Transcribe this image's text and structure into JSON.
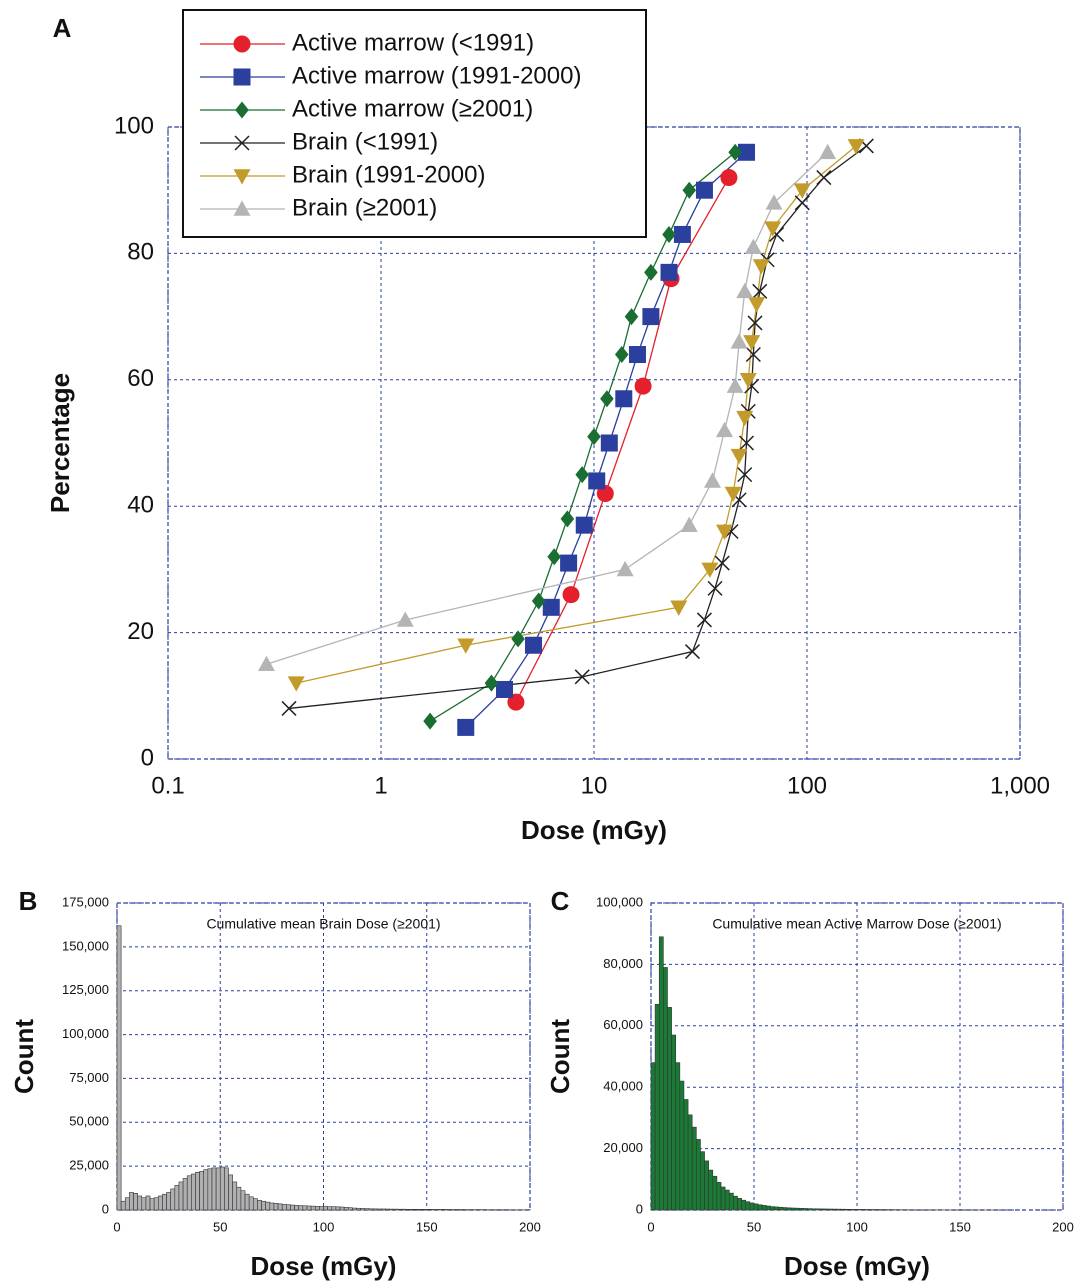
{
  "chart_data": [
    {
      "type": "line",
      "panel_label": "A",
      "xlabel": "Dose (mGy)",
      "ylabel": "Percentage",
      "xscale": "log",
      "xlim": [
        0.1,
        1000
      ],
      "xticks": [
        0.1,
        1,
        10,
        100,
        {
          "value": 1000,
          "label": "1,000"
        }
      ],
      "ylim": [
        0,
        100
      ],
      "yticks": [
        0,
        20,
        40,
        60,
        80,
        100
      ],
      "grid": true,
      "legend": "upper left",
      "series": [
        {
          "name": "Active marrow (<1991)",
          "color": "#e3202b",
          "marker": "circle",
          "x": [
            4.3,
            7.8,
            11.3,
            17,
            23,
            43
          ],
          "values": [
            9,
            26,
            42,
            59,
            76,
            92
          ]
        },
        {
          "name": "Active marrow (1991-2000)",
          "color": "#2b3f9e",
          "marker": "square",
          "x": [
            2.5,
            3.8,
            5.2,
            6.3,
            7.6,
            9,
            10.3,
            11.8,
            13.8,
            16,
            18.5,
            22.5,
            26,
            33,
            52
          ],
          "values": [
            5,
            11,
            18,
            24,
            31,
            37,
            44,
            50,
            57,
            64,
            70,
            77,
            83,
            90,
            96
          ]
        },
        {
          "name": "Active marrow (≥2001)",
          "color": "#1b6e31",
          "marker": "diamond",
          "x": [
            1.7,
            3.3,
            4.4,
            5.5,
            6.5,
            7.5,
            8.8,
            10,
            11.5,
            13.5,
            15,
            18.5,
            22.5,
            28,
            46
          ],
          "values": [
            6,
            12,
            19,
            25,
            32,
            38,
            45,
            51,
            57,
            64,
            70,
            77,
            83,
            90,
            96
          ]
        },
        {
          "name": "Brain (<1991)",
          "color": "#222222",
          "marker": "x",
          "x": [
            0.37,
            8.8,
            29,
            33,
            37,
            40,
            44,
            48,
            51,
            52,
            53,
            55,
            56,
            57,
            60,
            65,
            72,
            95,
            120,
            190
          ],
          "values": [
            8,
            13,
            17,
            22,
            27,
            31,
            36,
            41,
            45,
            50,
            55,
            59,
            64,
            69,
            74,
            79,
            83,
            88,
            92,
            97
          ]
        },
        {
          "name": "Brain (1991-2000)",
          "color": "#c29b2b",
          "marker": "triangle-down",
          "x": [
            0.4,
            2.5,
            25,
            35,
            41,
            45,
            48,
            51,
            53,
            55,
            58,
            61,
            69,
            95,
            170
          ],
          "values": [
            12,
            18,
            24,
            30,
            36,
            42,
            48,
            54,
            60,
            66,
            72,
            78,
            84,
            90,
            97
          ]
        },
        {
          "name": "Brain (≥2001)",
          "color": "#b4b4b4",
          "marker": "triangle-up",
          "x": [
            0.29,
            1.3,
            14,
            28,
            36,
            41,
            46,
            48,
            51,
            56,
            70,
            125
          ],
          "values": [
            15,
            22,
            30,
            37,
            44,
            52,
            59,
            66,
            74,
            81,
            88,
            96
          ]
        }
      ]
    },
    {
      "type": "histogram",
      "panel_label": "B",
      "annotation": "Cumulative mean Brain Dose (≥2001)",
      "xlabel": "Dose (mGy)",
      "ylabel": "Count",
      "color": "#b0b0b0",
      "grid": true,
      "xlim": [
        0,
        200
      ],
      "xticks": [
        0,
        50,
        100,
        150,
        200
      ],
      "ylim": [
        0,
        175000
      ],
      "yticks": [
        0,
        {
          "value": 25000,
          "label": "25,000"
        },
        {
          "value": 50000,
          "label": "50,000"
        },
        {
          "value": 75000,
          "label": "75,000"
        },
        {
          "value": 100000,
          "label": "100,000"
        },
        {
          "value": 125000,
          "label": "125,000"
        },
        {
          "value": 150000,
          "label": "150,000"
        },
        {
          "value": 175000,
          "label": "175,000"
        }
      ],
      "bins": [
        0,
        2,
        4,
        6,
        8,
        10,
        12,
        14,
        16,
        18,
        20,
        22,
        24,
        26,
        28,
        30,
        32,
        34,
        36,
        38,
        40,
        42,
        44,
        46,
        48,
        50,
        52,
        54,
        56,
        58,
        60,
        62,
        64,
        66,
        68,
        70,
        72,
        74,
        76,
        78,
        80,
        82,
        84,
        86,
        88,
        90,
        92,
        94,
        96,
        98,
        100,
        102,
        104,
        106,
        108,
        110,
        112,
        114,
        116,
        118,
        120,
        122,
        124,
        126,
        128,
        130,
        132,
        134,
        136,
        138,
        140,
        142,
        144,
        146,
        148,
        150,
        152,
        154,
        156,
        158,
        160,
        162,
        164,
        166,
        168,
        170,
        172,
        174,
        176,
        178,
        180,
        182,
        184,
        186,
        188,
        190,
        192,
        194,
        196,
        198,
        200
      ],
      "values": [
        162000,
        5000,
        7000,
        10000,
        9500,
        8000,
        7000,
        8000,
        6500,
        7000,
        8000,
        9000,
        10000,
        12000,
        14000,
        16000,
        18000,
        19500,
        20500,
        21500,
        22000,
        23000,
        23500,
        24000,
        24000,
        24500,
        24000,
        20000,
        16000,
        13000,
        11000,
        9000,
        7500,
        6500,
        5500,
        5000,
        4500,
        4000,
        3800,
        3500,
        3200,
        3000,
        2800,
        2600,
        2500,
        2400,
        2300,
        2200,
        2100,
        2000,
        2000,
        1900,
        1900,
        1800,
        1700,
        1500,
        1300,
        1100,
        1000,
        900,
        800,
        700,
        650,
        600,
        600,
        550,
        500,
        500,
        450,
        450,
        400,
        400,
        400,
        350,
        350,
        350,
        300,
        300,
        300,
        300,
        250,
        250,
        250,
        250,
        200,
        200,
        200,
        200,
        200,
        150,
        150,
        150,
        150,
        150,
        150,
        100,
        100,
        100,
        100,
        100
      ]
    },
    {
      "type": "histogram",
      "panel_label": "C",
      "annotation": "Cumulative mean Active Marrow Dose (≥2001)",
      "xlabel": "Dose (mGy)",
      "ylabel": "Count",
      "color": "#1a7a36",
      "grid": true,
      "xlim": [
        0,
        200
      ],
      "xticks": [
        0,
        50,
        100,
        150,
        200
      ],
      "ylim": [
        0,
        100000
      ],
      "yticks": [
        0,
        {
          "value": 20000,
          "label": "20,000"
        },
        {
          "value": 40000,
          "label": "40,000"
        },
        {
          "value": 60000,
          "label": "60,000"
        },
        {
          "value": 80000,
          "label": "80,000"
        },
        {
          "value": 100000,
          "label": "100,000"
        }
      ],
      "bins": [
        0,
        2,
        4,
        6,
        8,
        10,
        12,
        14,
        16,
        18,
        20,
        22,
        24,
        26,
        28,
        30,
        32,
        34,
        36,
        38,
        40,
        42,
        44,
        46,
        48,
        50,
        52,
        54,
        56,
        58,
        60,
        62,
        64,
        66,
        68,
        70,
        72,
        74,
        76,
        78,
        80,
        82,
        84,
        86,
        88,
        90,
        92,
        94,
        96,
        98,
        100,
        102,
        104,
        106,
        108,
        110,
        112,
        114,
        116,
        118,
        120,
        122,
        124,
        126,
        128,
        130,
        132,
        134,
        136,
        138,
        140,
        142,
        144,
        146,
        148,
        150,
        152,
        154,
        156,
        158,
        160,
        162,
        164,
        166,
        168,
        170,
        172,
        174,
        176,
        178,
        180,
        182,
        184,
        186,
        188,
        190,
        192,
        194,
        196,
        198,
        200
      ],
      "values": [
        48000,
        67000,
        89000,
        79000,
        66000,
        57000,
        48000,
        42000,
        36000,
        31000,
        27000,
        23000,
        19000,
        16000,
        13000,
        11000,
        9000,
        7500,
        6500,
        5500,
        4500,
        3800,
        3200,
        2700,
        2300,
        2000,
        1700,
        1500,
        1300,
        1100,
        1000,
        900,
        800,
        700,
        650,
        600,
        550,
        500,
        450,
        400,
        380,
        360,
        340,
        320,
        300,
        280,
        260,
        240,
        220,
        200,
        190,
        180,
        170,
        160,
        150,
        140,
        130,
        120,
        110,
        100,
        90,
        80,
        70,
        60,
        50,
        50,
        40,
        40,
        30,
        30,
        30,
        20,
        20,
        20,
        20,
        20,
        10,
        10,
        10,
        10,
        10,
        10,
        10,
        10,
        10,
        0,
        0,
        0,
        0,
        0,
        0,
        0,
        0,
        0,
        0,
        0,
        0,
        0,
        0,
        0
      ]
    }
  ]
}
